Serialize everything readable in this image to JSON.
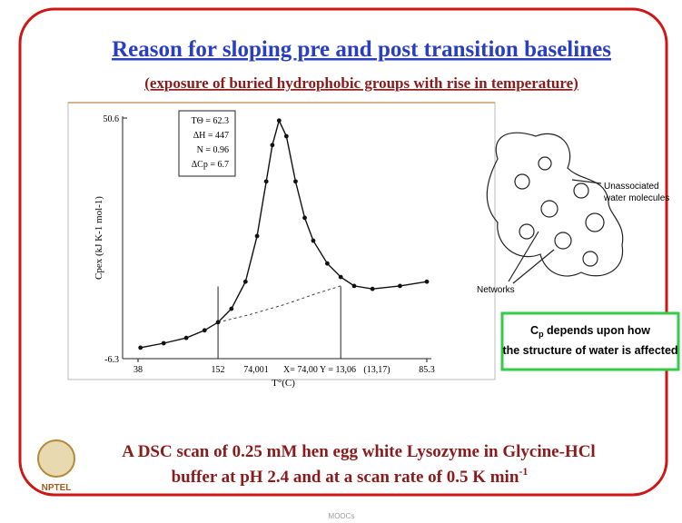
{
  "slide": {
    "title": "Reason for sloping pre and post transition baselines",
    "subtitle": "(exposure of buried hydrophobic groups with rise in temperature)",
    "diagram": {
      "label_1": "Unassociated",
      "label_2": "water molecules",
      "label_3": "Networks"
    },
    "note": {
      "c": "C",
      "sub": "p",
      "line1": " depends upon how",
      "line2": "the structure of water is affected"
    },
    "caption": {
      "line1": "A DSC scan of 0.25 mM hen egg white Lysozyme in Glycine-HCl",
      "line2": "buffer at pH 2.4 and at a scan rate of 0.5 K min",
      "sup": "-1"
    },
    "logo": "NPTEL",
    "footer": "MOOCs"
  },
  "chart_data": {
    "type": "scatter",
    "xlabel": "T°(C)",
    "ylabel": "Cpex (kJ K-1 mol-1)",
    "xlim": [
      38,
      85.3
    ],
    "xticks": [
      38,
      85.3
    ],
    "ylim": [
      -6.3,
      50.6
    ],
    "yticks": [
      50.6,
      -6.3
    ],
    "x": [
      38.4,
      42.2,
      45.9,
      48.9,
      51.1,
      53.3,
      55.6,
      57.5,
      59.0,
      60.0,
      61.1,
      62.3,
      63.8,
      65.3,
      66.7,
      69.0,
      71.2,
      73.4,
      76.4,
      80.9,
      85.3
    ],
    "series": [
      {
        "color": "#111111",
        "values": [
          -3.7,
          -2.65,
          -1.4,
          0.4,
          2.3,
          5.5,
          11.9,
          22.7,
          35.6,
          44.2,
          50.0,
          46.3,
          35.6,
          27.0,
          21.6,
          16.2,
          13.0,
          10.9,
          10.2,
          10.9,
          11.9
        ]
      }
    ],
    "baseline": {
      "x": [
        51.1,
        56.0,
        62.0,
        67.0,
        71.2
      ],
      "values": [
        2.3,
        4.0,
        6.5,
        9.0,
        10.9
      ],
      "color": "#444444"
    },
    "vlines": [
      51.1,
      71.2
    ],
    "inset": [
      "TΘ = 62.3",
      "ΔH = 447",
      "N = 0.96",
      "ΔCp = 6.7"
    ],
    "annotations": [
      "152",
      "74,001",
      "X= 74,00  Y = 13,06",
      "(13,17)"
    ]
  }
}
